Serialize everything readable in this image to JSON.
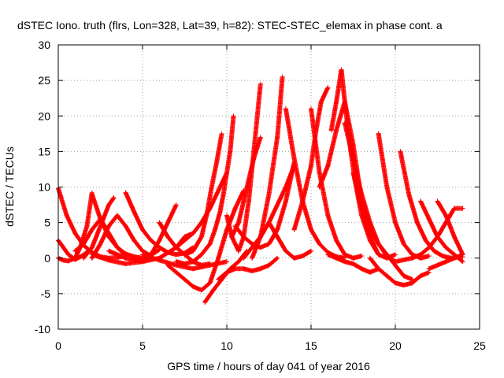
{
  "chart_data": {
    "type": "scatter",
    "title": "dSTEC Iono. truth (flrs, Lon=328, Lat=39, h=82): STEC-STEC_elemax in phase cont. a",
    "xlabel": "GPS time / hours of day 041 of year 2016",
    "ylabel": "dSTEC  / TECUs",
    "xlim": [
      0,
      25
    ],
    "ylim": [
      -10,
      30
    ],
    "xticks": [
      0,
      5,
      10,
      15,
      20,
      25
    ],
    "yticks": [
      -10,
      -5,
      0,
      5,
      10,
      15,
      20,
      25,
      30
    ],
    "grid": true,
    "marker": "+",
    "color": "#ff0000",
    "series": [
      {
        "x": [
          0.0,
          0.5,
          1.0,
          1.5,
          2.0,
          2.5,
          3.0,
          3.5,
          4.0
        ],
        "y": [
          9.8,
          6.0,
          3.5,
          1.8,
          0.8,
          0.2,
          0.0,
          0.1,
          0.3
        ]
      },
      {
        "x": [
          0.0,
          0.3,
          0.6,
          1.0,
          1.4,
          1.8
        ],
        "y": [
          2.5,
          1.5,
          0.5,
          -0.2,
          0.3,
          1.0
        ]
      },
      {
        "x": [
          0.0,
          0.3,
          0.6,
          1.0,
          1.3,
          1.7,
          2.0
        ],
        "y": [
          0.0,
          -0.3,
          -0.4,
          0.0,
          1.5,
          4.5,
          9.2
        ]
      },
      {
        "x": [
          2.0,
          2.5,
          3.0,
          3.5,
          4.0,
          4.5,
          5.0,
          5.5,
          6.0
        ],
        "y": [
          9.0,
          5.5,
          3.0,
          1.5,
          0.6,
          0.2,
          0.0,
          0.4,
          1.2
        ]
      },
      {
        "x": [
          1.0,
          1.5,
          2.0,
          2.5,
          3.0,
          3.5,
          4.0
        ],
        "y": [
          1.0,
          2.0,
          4.0,
          5.5,
          3.5,
          1.5,
          0.3
        ]
      },
      {
        "x": [
          2.0,
          2.5,
          3.0,
          3.5,
          4.0,
          4.5,
          5.0,
          5.5
        ],
        "y": [
          0.0,
          2.0,
          4.5,
          6.0,
          4.5,
          2.5,
          1.0,
          0.3
        ]
      },
      {
        "x": [
          1.5,
          2.0,
          2.5,
          3.0,
          3.3
        ],
        "y": [
          0.0,
          1.5,
          4.5,
          7.5,
          8.5
        ]
      },
      {
        "x": [
          4.0,
          4.5,
          5.0,
          5.5,
          6.0,
          6.5,
          7.0,
          7.5,
          8.0
        ],
        "y": [
          9.2,
          6.5,
          4.0,
          2.5,
          1.5,
          0.8,
          0.5,
          0.7,
          1.5
        ]
      },
      {
        "x": [
          2.0,
          3.0,
          4.0,
          5.0,
          5.5,
          6.0,
          6.5,
          7.0
        ],
        "y": [
          0.5,
          -0.3,
          -0.8,
          -0.5,
          0.5,
          2.5,
          5.0,
          7.5
        ]
      },
      {
        "x": [
          3.0,
          4.0,
          5.0,
          6.0,
          7.0,
          7.5,
          8.0
        ],
        "y": [
          1.0,
          0.0,
          -0.5,
          0.0,
          1.5,
          3.0,
          3.5
        ]
      },
      {
        "x": [
          6.0,
          6.5,
          7.0,
          7.5,
          8.0,
          8.5,
          9.0
        ],
        "y": [
          5.0,
          3.0,
          1.5,
          0.5,
          -0.5,
          -1.0,
          -0.8
        ]
      },
      {
        "x": [
          5.0,
          6.0,
          7.0,
          8.0,
          9.0,
          10.0
        ],
        "y": [
          0.5,
          -0.3,
          -1.0,
          -1.5,
          -1.0,
          -0.5
        ]
      },
      {
        "x": [
          6.5,
          7.0,
          7.5,
          8.0,
          8.5,
          9.0,
          9.5,
          10.0,
          10.5,
          11.0
        ],
        "y": [
          -1.0,
          -2.0,
          -3.0,
          -4.0,
          -4.5,
          -3.5,
          0.0,
          4.0,
          7.0,
          9.5
        ]
      },
      {
        "x": [
          7.0,
          7.5,
          8.0,
          8.5,
          9.0,
          9.3,
          9.6,
          9.8,
          10.0,
          10.2,
          10.4
        ],
        "y": [
          -0.5,
          -0.8,
          -0.5,
          0.5,
          2.0,
          4.0,
          6.5,
          9.0,
          12.0,
          15.0,
          20.0
        ]
      },
      {
        "x": [
          7.5,
          8.0,
          8.5,
          8.8,
          9.1,
          9.4,
          9.7
        ],
        "y": [
          0.5,
          1.0,
          3.0,
          6.0,
          10.0,
          13.5,
          17.5
        ]
      },
      {
        "x": [
          7.0,
          7.5,
          8.0,
          8.5,
          9.0,
          9.5,
          10.0
        ],
        "y": [
          1.5,
          2.5,
          3.5,
          5.0,
          7.0,
          9.5,
          12.0
        ]
      },
      {
        "x": [
          8.7,
          9.2,
          9.7,
          10.2,
          10.7,
          11.2
        ],
        "y": [
          -6.2,
          -4.5,
          -3.0,
          -1.5,
          -0.5,
          1.0
        ]
      },
      {
        "x": [
          9.5,
          10.0,
          10.5,
          11.0,
          11.5,
          12.0,
          12.5,
          13.0
        ],
        "y": [
          -3.0,
          -2.0,
          -1.5,
          -1.5,
          -1.8,
          -1.5,
          -1.0,
          0.0
        ]
      },
      {
        "x": [
          10.0,
          10.3,
          10.7,
          11.0,
          11.3,
          11.6,
          12.0
        ],
        "y": [
          6.0,
          3.0,
          1.0,
          3.0,
          8.0,
          15.0,
          24.5
        ]
      },
      {
        "x": [
          10.3,
          10.7,
          11.0,
          11.3,
          11.6,
          12.0
        ],
        "y": [
          3.0,
          5.0,
          8.0,
          11.0,
          14.0,
          17.0
        ]
      },
      {
        "x": [
          11.5,
          12.0,
          12.5,
          13.0,
          13.3
        ],
        "y": [
          0.0,
          3.0,
          9.0,
          17.0,
          25.5
        ]
      },
      {
        "x": [
          10.5,
          11.0,
          11.5,
          12.0,
          12.5,
          13.0,
          13.5,
          14.0
        ],
        "y": [
          4.5,
          3.0,
          2.0,
          1.5,
          2.0,
          4.0,
          8.0,
          13.5
        ]
      },
      {
        "x": [
          11.0,
          11.5,
          12.0,
          12.5,
          13.0,
          13.5,
          14.0
        ],
        "y": [
          0.0,
          1.5,
          3.0,
          5.0,
          7.5,
          10.0,
          13.0
        ]
      },
      {
        "x": [
          12.5,
          13.0,
          13.5,
          14.0,
          14.5,
          15.0
        ],
        "y": [
          5.0,
          3.0,
          1.0,
          0.0,
          0.3,
          1.0
        ]
      },
      {
        "x": [
          13.5,
          14.0,
          14.5,
          15.0,
          15.5,
          16.0,
          16.5,
          17.0
        ],
        "y": [
          21.0,
          14.0,
          8.0,
          4.0,
          2.0,
          0.8,
          0.2,
          0.0
        ]
      },
      {
        "x": [
          14.0,
          14.5,
          15.0,
          15.3,
          15.6,
          16.0
        ],
        "y": [
          4.0,
          8.0,
          13.0,
          18.0,
          22.0,
          24.0
        ]
      },
      {
        "x": [
          15.0,
          15.5,
          16.0,
          16.5,
          17.0,
          17.5,
          18.0
        ],
        "y": [
          21.0,
          12.0,
          6.0,
          2.5,
          0.5,
          0.0,
          0.3
        ]
      },
      {
        "x": [
          15.5,
          16.0,
          16.5,
          17.0,
          17.5,
          18.0,
          18.5,
          19.0
        ],
        "y": [
          10.0,
          13.0,
          18.0,
          22.0,
          16.0,
          8.0,
          3.0,
          0.5
        ]
      },
      {
        "x": [
          16.2,
          16.5,
          16.8,
          17.0,
          17.3,
          17.6,
          18.0,
          18.5,
          19.0,
          19.5,
          20.0
        ],
        "y": [
          18.0,
          22.0,
          26.5,
          22.0,
          16.0,
          11.0,
          6.0,
          2.5,
          0.5,
          0.0,
          0.5
        ]
      },
      {
        "x": [
          17.0,
          17.5,
          18.0,
          18.5,
          19.0,
          19.5,
          20.0,
          21.0
        ],
        "y": [
          19.0,
          14.0,
          9.0,
          5.0,
          2.0,
          0.3,
          -0.5,
          0.0
        ]
      },
      {
        "x": [
          17.5,
          18.0,
          18.5,
          19.0,
          19.5,
          20.0,
          20.5,
          21.0
        ],
        "y": [
          12.0,
          7.0,
          4.0,
          2.0,
          0.5,
          -1.0,
          -2.5,
          -3.0
        ]
      },
      {
        "x": [
          16.0,
          16.5,
          17.0,
          17.5,
          18.0,
          18.5,
          19.0
        ],
        "y": [
          0.5,
          0.0,
          -0.5,
          -0.8,
          -1.5,
          -2.0,
          -1.5
        ]
      },
      {
        "x": [
          19.0,
          19.5,
          20.0,
          20.5,
          21.0,
          21.5,
          22.0
        ],
        "y": [
          17.5,
          10.0,
          5.0,
          2.0,
          0.5,
          0.0,
          0.3
        ]
      },
      {
        "x": [
          20.3,
          20.8,
          21.3,
          21.8,
          22.3,
          22.8,
          23.3,
          24.0
        ],
        "y": [
          15.0,
          9.0,
          5.0,
          2.5,
          1.0,
          0.3,
          0.0,
          0.2
        ]
      },
      {
        "x": [
          18.5,
          19.0,
          19.5,
          20.0,
          20.5,
          21.0,
          21.5,
          22.0
        ],
        "y": [
          0.0,
          -1.5,
          -2.5,
          -3.5,
          -3.8,
          -3.5,
          -2.5,
          -2.0
        ]
      },
      {
        "x": [
          21.5,
          22.0,
          22.5,
          23.0,
          23.5,
          24.0
        ],
        "y": [
          8.0,
          5.5,
          3.0,
          1.5,
          0.5,
          -0.5
        ]
      },
      {
        "x": [
          22.5,
          23.0,
          23.5,
          24.0
        ],
        "y": [
          8.0,
          6.0,
          3.0,
          0.5
        ]
      },
      {
        "x": [
          21.0,
          21.5,
          22.0,
          22.5,
          23.0,
          23.5,
          24.0
        ],
        "y": [
          0.0,
          0.5,
          1.5,
          3.0,
          5.0,
          7.0,
          7.0
        ]
      },
      {
        "x": [
          22.0,
          22.5,
          23.0,
          23.5,
          24.0
        ],
        "y": [
          -1.5,
          -1.0,
          -0.5,
          0.0,
          0.5
        ]
      }
    ]
  }
}
